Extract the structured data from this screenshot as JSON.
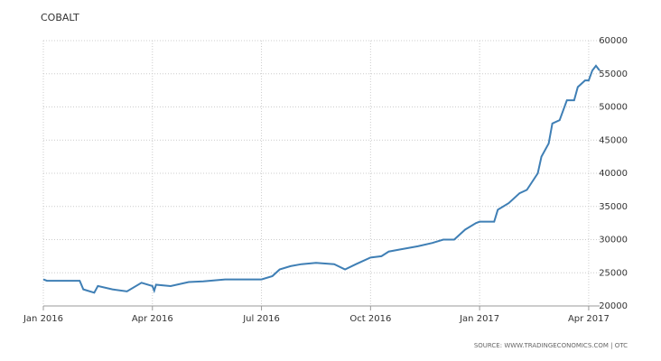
{
  "chart_data": {
    "type": "line",
    "title": "COBALT",
    "source": "SOURCE: WWW.TRADINGECONOMICS.COM | OTC",
    "x": [
      0,
      0.1,
      1.0,
      1.1,
      1.4,
      1.5,
      1.9,
      2.3,
      2.7,
      3.0,
      3.05,
      3.1,
      3.5,
      4.0,
      4.4,
      5.0,
      6.0,
      6.3,
      6.5,
      6.8,
      7.1,
      7.5,
      8.0,
      8.3,
      8.6,
      9.0,
      9.3,
      9.5,
      9.8,
      10.3,
      10.7,
      11.0,
      11.3,
      11.6,
      11.9,
      12.0,
      12.4,
      12.5,
      12.8,
      13.1,
      13.3,
      13.6,
      13.7,
      13.9,
      14.0,
      14.2,
      14.4,
      14.6,
      14.7,
      14.9,
      15.0,
      15.1,
      15.2,
      15.3
    ],
    "series": [
      {
        "name": "Cobalt",
        "color": "#3f7fb5",
        "values": [
          24000,
          23800,
          23800,
          22500,
          22000,
          23000,
          22500,
          22200,
          23500,
          23000,
          22300,
          23200,
          23000,
          23600,
          23700,
          24000,
          24000,
          24500,
          25500,
          26000,
          26300,
          26500,
          26300,
          25500,
          26300,
          27300,
          27500,
          28200,
          28500,
          29000,
          29500,
          30000,
          30000,
          31500,
          32500,
          32700,
          32700,
          34500,
          35500,
          37000,
          37500,
          40000,
          42500,
          44500,
          47500,
          48000,
          51000,
          51000,
          53000,
          54000,
          54000,
          55500,
          56200,
          55500
        ]
      }
    ],
    "xlim": [
      0,
      15.3
    ],
    "xticks": [
      {
        "value": 0,
        "label": "Jan 2016"
      },
      {
        "value": 3,
        "label": "Apr 2016"
      },
      {
        "value": 6,
        "label": "Jul 2016"
      },
      {
        "value": 9,
        "label": "Oct 2016"
      },
      {
        "value": 12,
        "label": "Jan 2017"
      },
      {
        "value": 15,
        "label": "Apr 2017"
      }
    ],
    "ylim": [
      20000,
      60000
    ],
    "yticks": [
      20000,
      25000,
      30000,
      35000,
      40000,
      45000,
      50000,
      55000,
      60000
    ],
    "grid": true
  }
}
